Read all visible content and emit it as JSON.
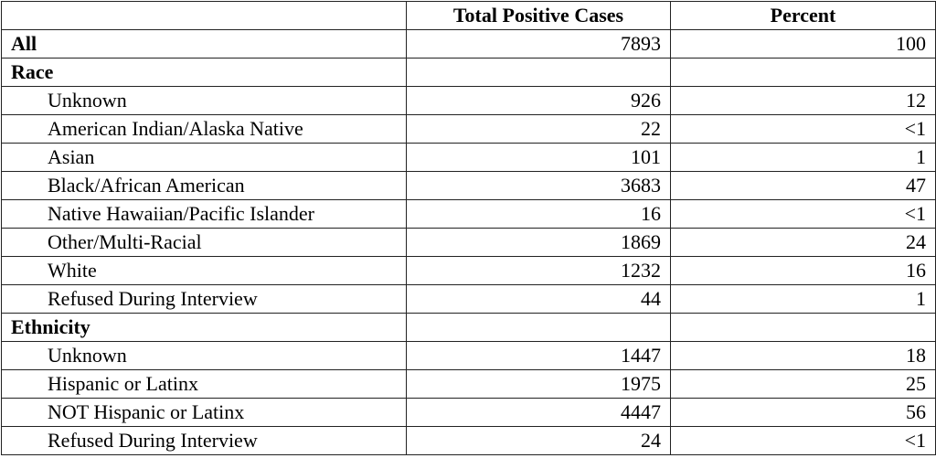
{
  "table": {
    "columns": [
      "Total Positive Cases",
      "Percent"
    ],
    "all": {
      "label": "All",
      "cases": 7893,
      "percent": 100
    },
    "sections": [
      {
        "title": "Race",
        "rows": [
          {
            "label": "Unknown",
            "cases": 926,
            "percent": 12
          },
          {
            "label": "American Indian/Alaska Native",
            "cases": 22,
            "percent": "<1"
          },
          {
            "label": "Asian",
            "cases": 101,
            "percent": 1
          },
          {
            "label": "Black/African American",
            "cases": 3683,
            "percent": 47
          },
          {
            "label": "Native Hawaiian/Pacific Islander",
            "cases": 16,
            "percent": "<1"
          },
          {
            "label": "Other/Multi-Racial",
            "cases": 1869,
            "percent": 24
          },
          {
            "label": "White",
            "cases": 1232,
            "percent": 16
          },
          {
            "label": "Refused During Interview",
            "cases": 44,
            "percent": 1
          }
        ]
      },
      {
        "title": "Ethnicity",
        "rows": [
          {
            "label": "Unknown",
            "cases": 1447,
            "percent": 18
          },
          {
            "label": "Hispanic or Latinx",
            "cases": 1975,
            "percent": 25
          },
          {
            "label": "NOT Hispanic or Latinx",
            "cases": 4447,
            "percent": 56
          },
          {
            "label": "Refused During Interview",
            "cases": 24,
            "percent": "<1"
          }
        ]
      }
    ]
  }
}
